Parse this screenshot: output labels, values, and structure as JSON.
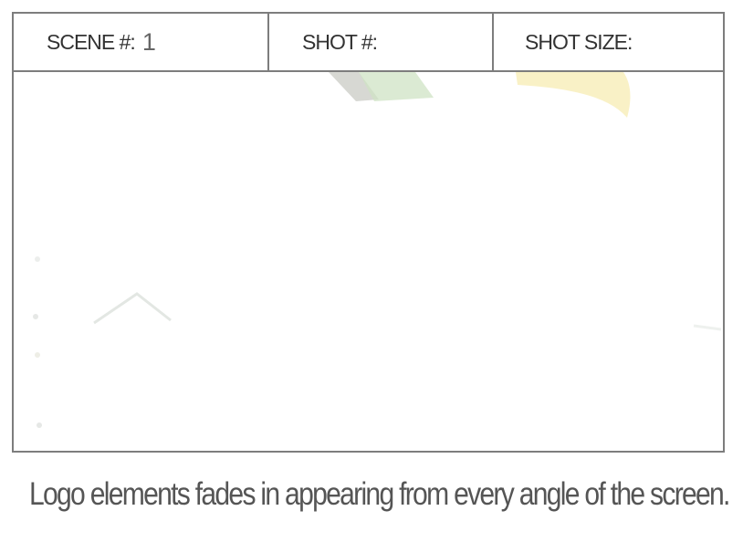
{
  "storyboard": {
    "scene_label": "SCENE #:",
    "scene_value": "1",
    "shot_label": "SHOT #:",
    "shot_value": "",
    "shot_size_label": "SHOT SIZE:",
    "shot_size_value": ""
  },
  "panel": {
    "colors": {
      "gray_shape": "#c9cbc4",
      "green_shape": "#cfe3c4",
      "yellow_shape": "#f6e9a8",
      "faint_stroke": "#e3e7e3"
    }
  },
  "caption": "Logo elements fades in appearing from every angle of the screen."
}
